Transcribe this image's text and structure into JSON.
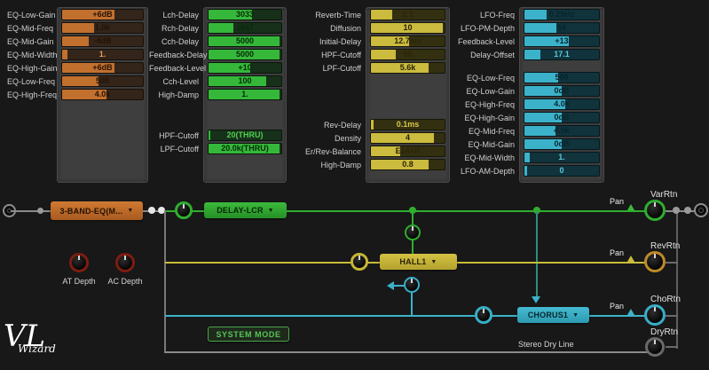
{
  "panels": {
    "eq": {
      "rows": [
        {
          "label": "EQ-Low-Gain",
          "value": "+6dB",
          "fill": 0.65
        },
        {
          "label": "EQ-Mid-Freq",
          "value": "1.0k",
          "fill": 0.4
        },
        {
          "label": "EQ-Mid-Gain",
          "value": "-4dB",
          "fill": 0.33
        },
        {
          "label": "EQ-Mid-Width",
          "value": "1.",
          "fill": 0.07
        },
        {
          "label": "EQ-High-Gain",
          "value": "+6dB",
          "fill": 0.65
        },
        {
          "label": "EQ-Low-Freq",
          "value": "500",
          "fill": 0.45
        },
        {
          "label": "EQ-High-Freq",
          "value": "4.0k",
          "fill": 0.55
        }
      ]
    },
    "delay": {
      "rows": [
        {
          "label": "Lch-Delay",
          "value": "3033",
          "fill": 0.6
        },
        {
          "label": "Rch-Delay",
          "value": "1667",
          "fill": 0.34
        },
        {
          "label": "Cch-Delay",
          "value": "5000",
          "fill": 0.97
        },
        {
          "label": "Feedback-Delay",
          "value": "5000",
          "fill": 0.97
        },
        {
          "label": "Feedback-Level",
          "value": "+10",
          "fill": 0.57
        },
        {
          "label": "Cch-Level",
          "value": "100",
          "fill": 0.79
        },
        {
          "label": "High-Damp",
          "value": "1.",
          "fill": 0.97
        }
      ],
      "filter_rows": [
        {
          "label": "HPF-Cutoff",
          "value": "20(THRU)",
          "fill": 0.03
        },
        {
          "label": "LPF-Cutoff",
          "value": "20.0k(THRU)",
          "fill": 0.97
        }
      ]
    },
    "reverb": {
      "rows": [
        {
          "label": "Reverb-Time",
          "value": "2.1",
          "fill": 0.29
        },
        {
          "label": "Diffusion",
          "value": "10",
          "fill": 0.97
        },
        {
          "label": "Initial-Delay",
          "value": "12.7ms",
          "fill": 0.52
        },
        {
          "label": "HPF-Cutoff",
          "value": "90",
          "fill": 0.34
        },
        {
          "label": "LPF-Cutoff",
          "value": "5.6k",
          "fill": 0.78
        }
      ],
      "tail_rows": [
        {
          "label": "Rev-Delay",
          "value": "0.1ms",
          "fill": 0.04
        },
        {
          "label": "Density",
          "value": "4",
          "fill": 0.85
        },
        {
          "label": "Er/Rev-Balance",
          "value": "E14>R",
          "fill": 0.4
        },
        {
          "label": "High-Damp",
          "value": "0.8",
          "fill": 0.78
        }
      ]
    },
    "chorus": {
      "lfo_rows": [
        {
          "label": "LFO-Freq",
          "value": "0.25Hz",
          "fill": 0.3
        },
        {
          "label": "LFO-PM-Depth",
          "value": "54",
          "fill": 0.43
        },
        {
          "label": "Feedback-Level",
          "value": "+13",
          "fill": 0.6
        },
        {
          "label": "Delay-Offset",
          "value": "17.1",
          "fill": 0.22
        }
      ],
      "eq_rows": [
        {
          "label": "EQ-Low-Freq",
          "value": "500",
          "fill": 0.45
        },
        {
          "label": "EQ-Low-Gain",
          "value": "0dB",
          "fill": 0.5
        },
        {
          "label": "EQ-High-Freq",
          "value": "4.0k",
          "fill": 0.55
        },
        {
          "label": "EQ-High-Gain",
          "value": "0dB",
          "fill": 0.5
        },
        {
          "label": "EQ-Mid-Freq",
          "value": "4.0k",
          "fill": 0.42
        },
        {
          "label": "EQ-Mid-Gain",
          "value": "0dB",
          "fill": 0.5
        },
        {
          "label": "EQ-Mid-Width",
          "value": "1.",
          "fill": 0.07
        },
        {
          "label": "LFO-AM-Depth",
          "value": "0",
          "fill": 0.03
        }
      ]
    }
  },
  "routing": {
    "eq_block_label": "3-BAND-EQ(M...",
    "delay_block_label": "DELAY-LCR",
    "reverb_block_label": "HALL1",
    "chorus_block_label": "CHORUS1",
    "system_mode_label": "SYSTEM MODE",
    "stereo_dry_line_label": "Stereo Dry Line",
    "pan_label": "Pan",
    "dropdown_icon": "▼",
    "returns": {
      "variation": "VarRtn",
      "reverb": "RevRtn",
      "chorus": "ChoRtn",
      "dry": "DryRtn"
    },
    "at_depth_label": "AT Depth",
    "ac_depth_label": "AC Depth"
  },
  "logo": {
    "main": "VL",
    "sub": "Wizard"
  },
  "colors": {
    "orange": "#c2702e",
    "green": "#2fae2f",
    "yellow": "#c8bc3a",
    "cyan": "#38aec6",
    "dark_red": "#7e1d10",
    "line_gray": "#8a8a8a"
  }
}
